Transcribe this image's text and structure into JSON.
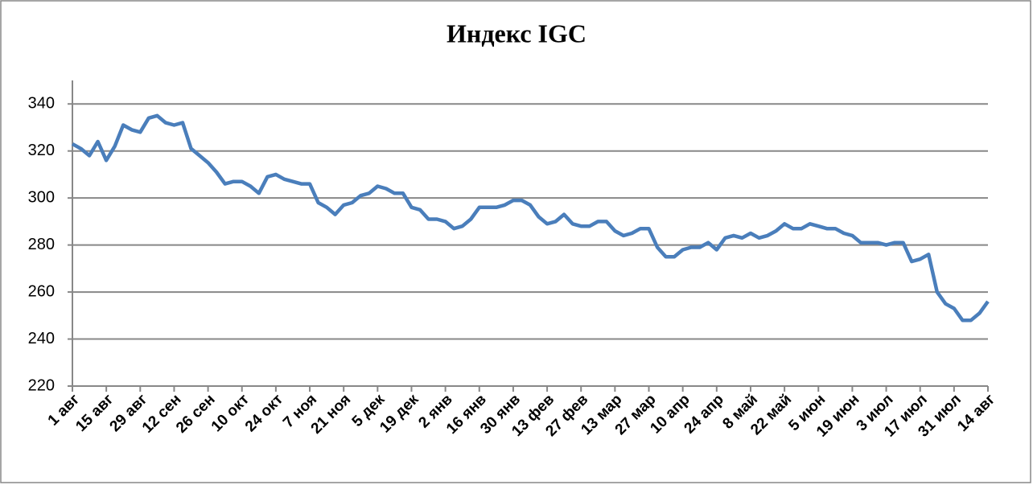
{
  "chart_data": {
    "type": "line",
    "title": "Индекс IGC",
    "categories": [
      "1 авг",
      null,
      null,
      null,
      "15 авг",
      null,
      null,
      null,
      "29 авг",
      null,
      null,
      null,
      "12 сен",
      null,
      null,
      null,
      "26 сен",
      null,
      null,
      null,
      "10 окт",
      null,
      null,
      null,
      "24 окт",
      null,
      null,
      null,
      "7 ноя",
      null,
      null,
      null,
      "21 ноя",
      null,
      null,
      null,
      "5 дек",
      null,
      null,
      null,
      "19 дек",
      null,
      null,
      null,
      "2 янв",
      null,
      null,
      null,
      "16 янв",
      null,
      null,
      null,
      "30 янв",
      null,
      null,
      null,
      "13 фев",
      null,
      null,
      null,
      "27 фев",
      null,
      null,
      null,
      "13 мар",
      null,
      null,
      null,
      "27 мар",
      null,
      null,
      null,
      "10 апр",
      null,
      null,
      null,
      "24 апр",
      null,
      null,
      null,
      "8 май",
      null,
      null,
      null,
      "22 май",
      null,
      null,
      null,
      "5 июн",
      null,
      null,
      null,
      "19 июн",
      null,
      null,
      null,
      "3 июл",
      null,
      null,
      null,
      "17 июл",
      null,
      null,
      null,
      "31 июл",
      null,
      null,
      null,
      "14 авг"
    ],
    "values": [
      323,
      321,
      318,
      324,
      316,
      322,
      331,
      329,
      328,
      334,
      335,
      332,
      331,
      332,
      321,
      318,
      315,
      311,
      306,
      307,
      307,
      305,
      302,
      309,
      310,
      308,
      307,
      306,
      306,
      298,
      296,
      293,
      297,
      298,
      301,
      302,
      305,
      304,
      302,
      302,
      296,
      295,
      291,
      291,
      290,
      287,
      288,
      291,
      296,
      296,
      296,
      297,
      299,
      299,
      297,
      292,
      289,
      290,
      293,
      289,
      288,
      288,
      290,
      290,
      286,
      284,
      285,
      287,
      287,
      279,
      275,
      275,
      278,
      279,
      279,
      281,
      278,
      283,
      284,
      283,
      285,
      283,
      284,
      286,
      289,
      287,
      287,
      289,
      288,
      287,
      287,
      285,
      284,
      281,
      281,
      281,
      280,
      281,
      281,
      273,
      274,
      276,
      260,
      255,
      253,
      248,
      248,
      251,
      256
    ],
    "color": "#4a7ebb",
    "ylim": [
      220,
      350
    ],
    "yticks": [
      220,
      240,
      260,
      280,
      300,
      320,
      340
    ],
    "grid": true
  }
}
